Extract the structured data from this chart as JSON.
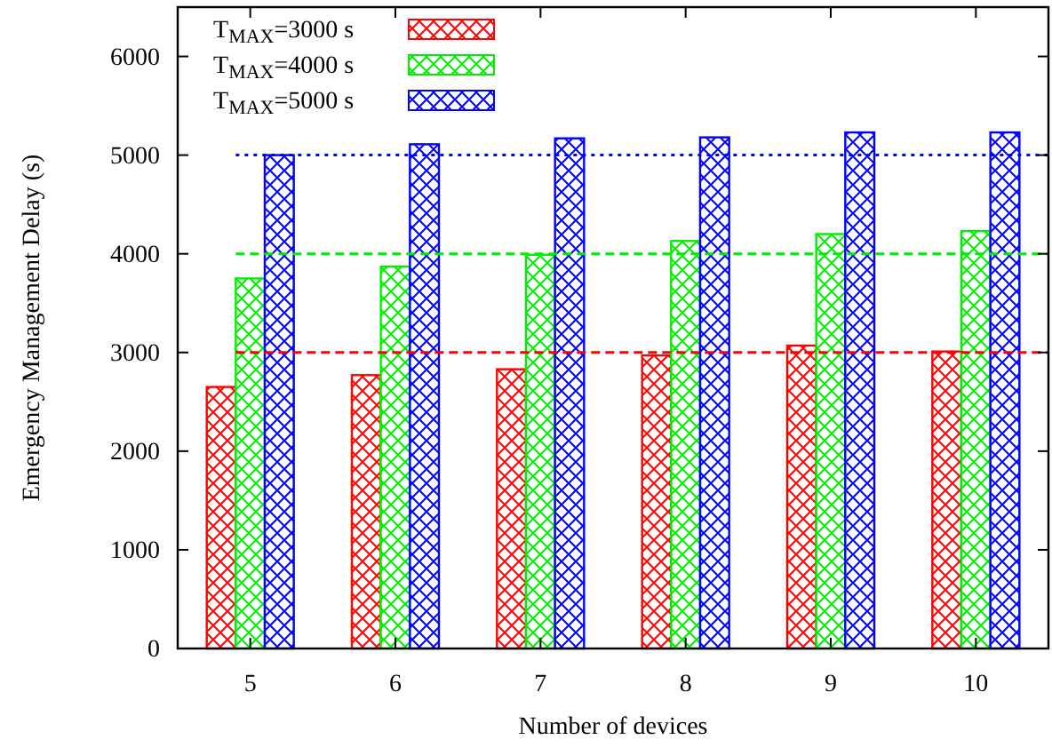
{
  "chart_data": {
    "type": "bar",
    "xlabel": "Number of devices",
    "ylabel": "Emergency Management Delay (s)",
    "categories": [
      "5",
      "6",
      "7",
      "8",
      "9",
      "10"
    ],
    "series": [
      {
        "name": "T$_{MAX}$=3000 s",
        "color": "#ff0000",
        "values": [
          2650,
          2770,
          2830,
          2970,
          3070,
          3010
        ]
      },
      {
        "name": "T$_{MAX}$=4000 s",
        "color": "#00ee00",
        "values": [
          3750,
          3870,
          3990,
          4130,
          4200,
          4230
        ]
      },
      {
        "name": "T$_{MAX}$=5000 s",
        "color": "#0000ff",
        "values": [
          5000,
          5110,
          5170,
          5180,
          5230,
          5230
        ]
      }
    ],
    "ylim": [
      0,
      6500
    ],
    "yticks": [
      0,
      1000,
      2000,
      3000,
      4000,
      5000,
      6000
    ],
    "ref_lines": [
      {
        "axis": "y",
        "value": 3000,
        "color": "#ff0000",
        "line_style": "dashed"
      },
      {
        "axis": "y",
        "value": 4000,
        "color": "#00ee00",
        "line_style": "dashed"
      },
      {
        "axis": "y",
        "value": 5000,
        "color": "#0000ff",
        "line_style": "dotted"
      }
    ],
    "grid": false,
    "legend": "top left"
  }
}
